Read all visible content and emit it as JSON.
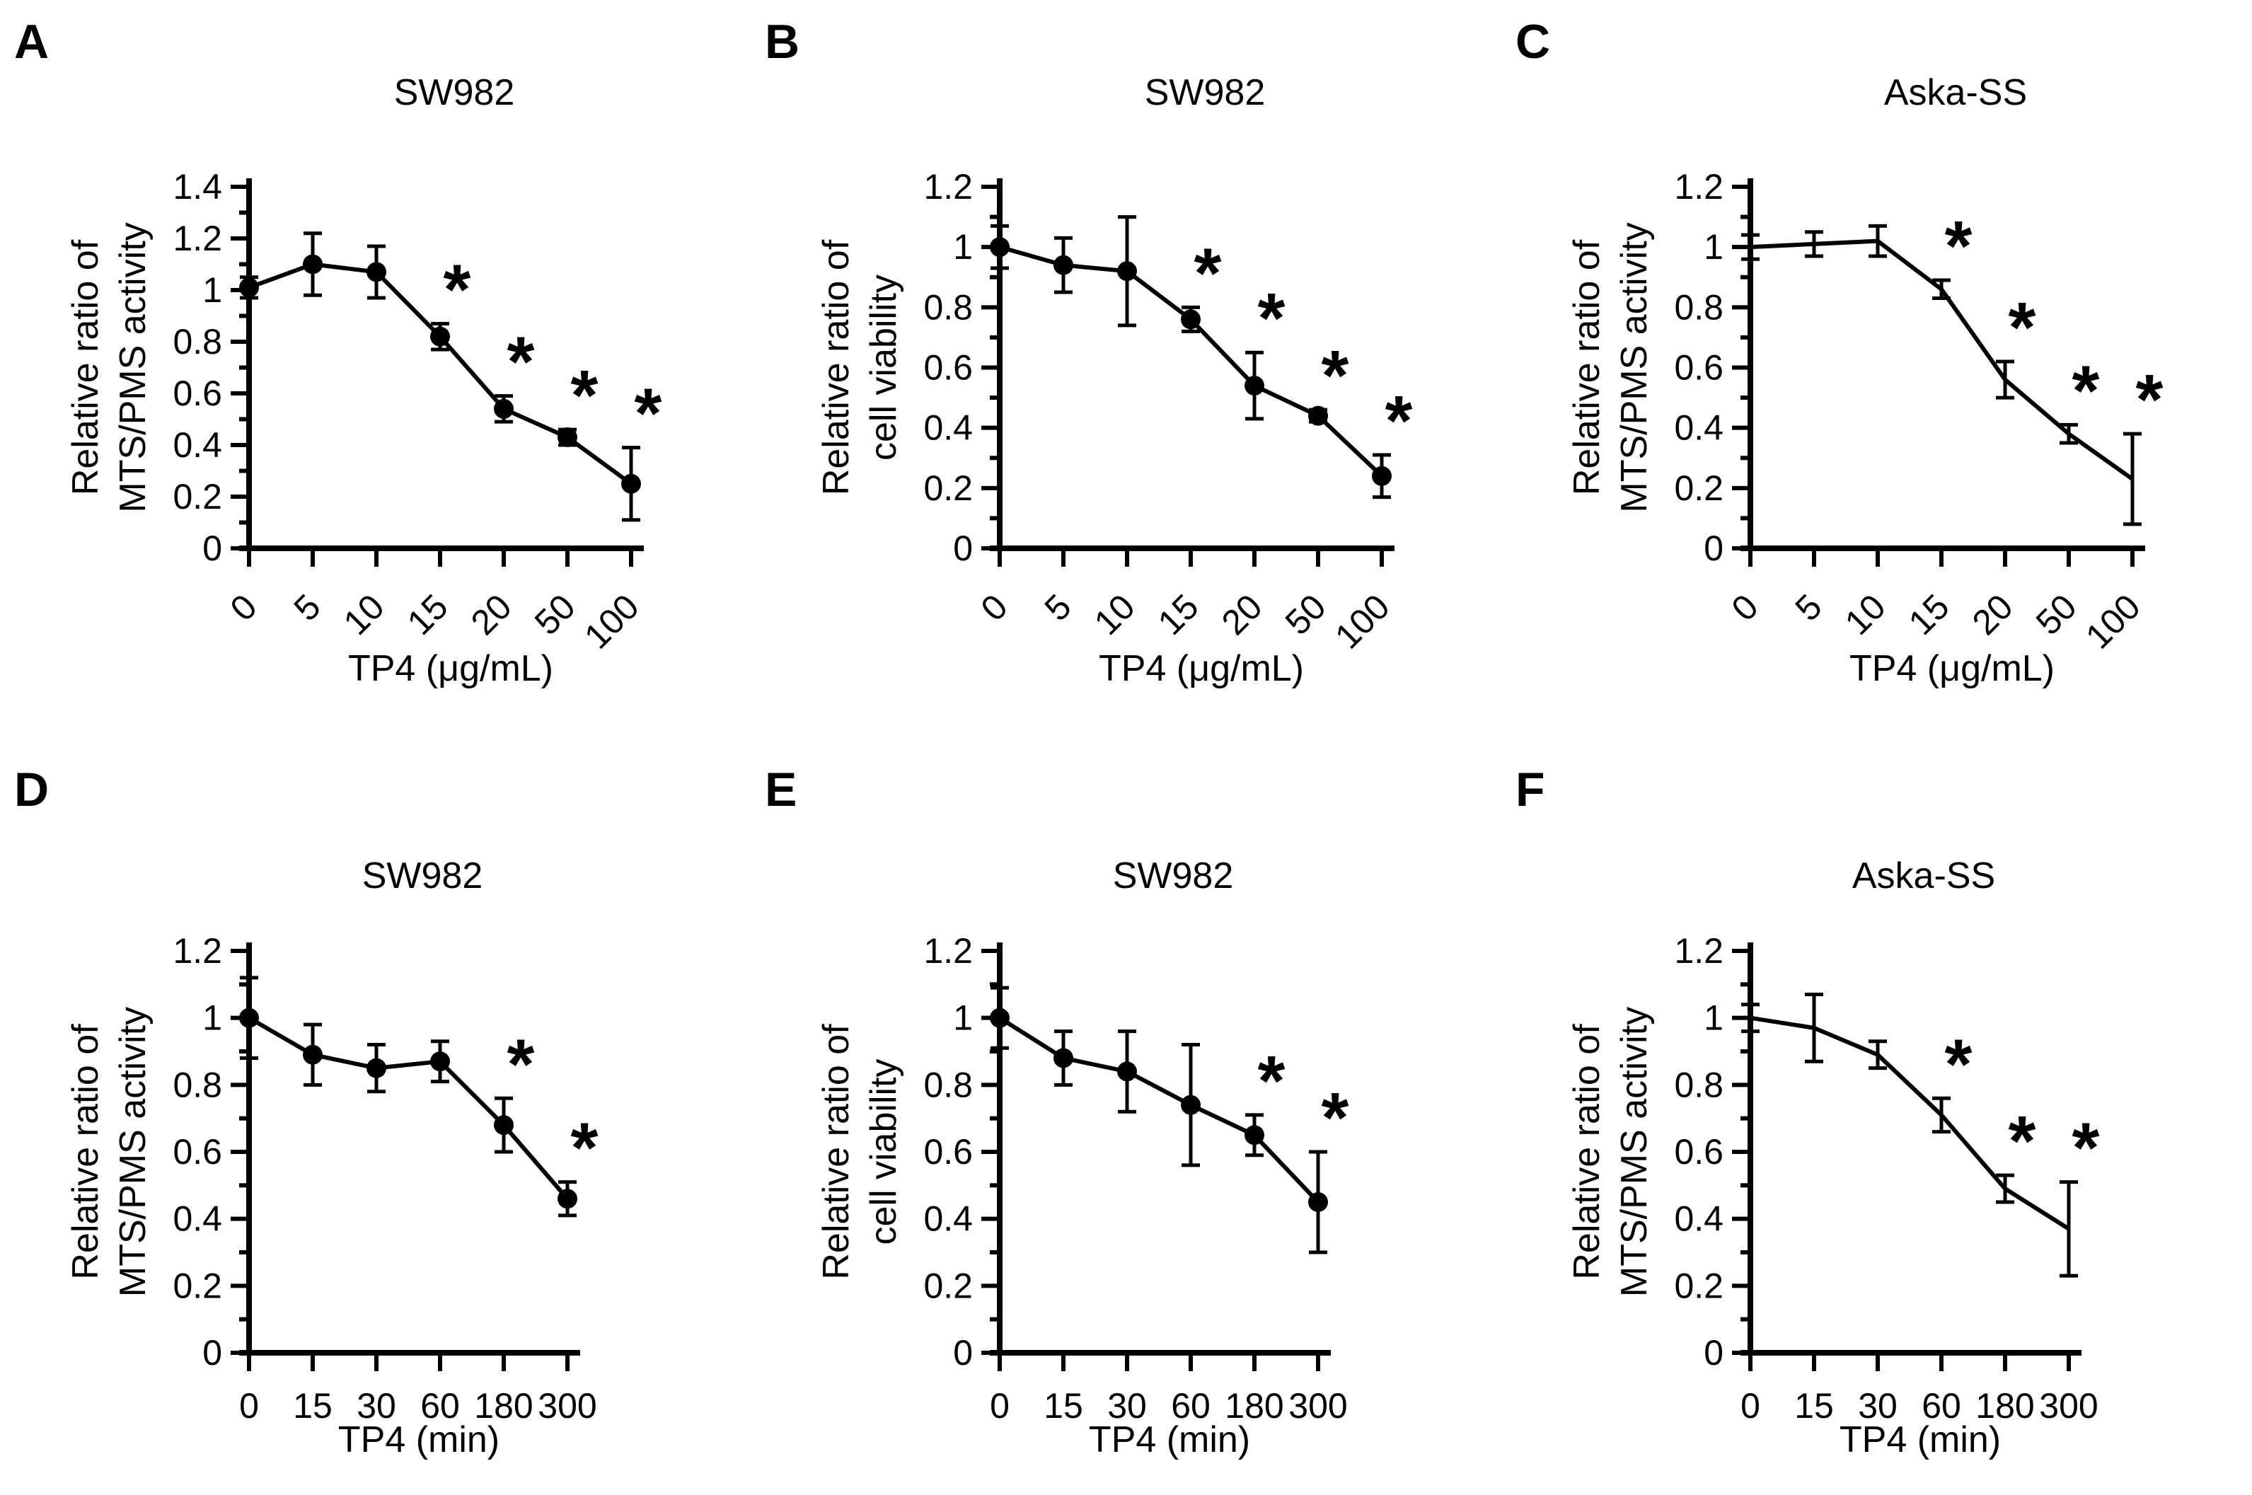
{
  "figure": {
    "background_color": "#ffffff",
    "ink_color": "#000000",
    "significance_symbol": "*",
    "panel_letters": [
      "A",
      "B",
      "C",
      "D",
      "E",
      "F"
    ]
  },
  "chart_data": [
    {
      "panel_letter": "A",
      "type": "line",
      "title": "SW982",
      "xlabel": "TP4 (μg/mL)",
      "ylabel_lines": [
        "Relative ratio of",
        "MTS/PMS activity"
      ],
      "categories": [
        "0",
        "5",
        "10",
        "15",
        "20",
        "50",
        "100"
      ],
      "values": [
        1.01,
        1.1,
        1.07,
        0.82,
        0.54,
        0.43,
        0.25
      ],
      "errors": [
        0.04,
        0.12,
        0.1,
        0.05,
        0.05,
        0.03,
        0.14
      ],
      "significant": [
        false,
        false,
        false,
        true,
        true,
        true,
        true
      ],
      "has_point_markers": true,
      "x_labels_rotated": true,
      "ylim": [
        0,
        1.4
      ],
      "yticks": [
        "0",
        "0.2",
        "0.4",
        "0.6",
        "0.8",
        "1",
        "1.2",
        "1.4"
      ],
      "grid": false,
      "legend": "none",
      "line_color": "#000000"
    },
    {
      "panel_letter": "B",
      "type": "line",
      "title": "SW982",
      "xlabel": "TP4 (μg/mL)",
      "ylabel_lines": [
        "Relative ratio of",
        "cell viability"
      ],
      "categories": [
        "0",
        "5",
        "10",
        "15",
        "20",
        "50",
        "100"
      ],
      "values": [
        1.0,
        0.94,
        0.92,
        0.76,
        0.54,
        0.44,
        0.24
      ],
      "errors": [
        0.07,
        0.09,
        0.18,
        0.04,
        0.11,
        0.02,
        0.07
      ],
      "significant": [
        false,
        false,
        false,
        true,
        true,
        true,
        true
      ],
      "has_point_markers": true,
      "x_labels_rotated": true,
      "ylim": [
        0,
        1.2
      ],
      "yticks": [
        "0",
        "0.2",
        "0.4",
        "0.6",
        "0.8",
        "1",
        "1.2"
      ],
      "grid": false,
      "legend": "none",
      "line_color": "#000000"
    },
    {
      "panel_letter": "C",
      "type": "line",
      "title": "Aska-SS",
      "xlabel": "TP4 (μg/mL)",
      "ylabel_lines": [
        "Relative ratio of",
        "MTS/PMS activity"
      ],
      "categories": [
        "0",
        "5",
        "10",
        "15",
        "20",
        "50",
        "100"
      ],
      "values": [
        1.0,
        1.01,
        1.02,
        0.86,
        0.56,
        0.38,
        0.23
      ],
      "errors": [
        0.04,
        0.04,
        0.05,
        0.03,
        0.06,
        0.03,
        0.15
      ],
      "significant": [
        false,
        false,
        false,
        true,
        true,
        true,
        true
      ],
      "has_point_markers": false,
      "x_labels_rotated": true,
      "ylim": [
        0,
        1.2
      ],
      "yticks": [
        "0",
        "0.2",
        "0.4",
        "0.6",
        "0.8",
        "1",
        "1.2"
      ],
      "grid": false,
      "legend": "none",
      "line_color": "#000000"
    },
    {
      "panel_letter": "D",
      "type": "line",
      "title": "SW982",
      "xlabel": "TP4 (min)",
      "ylabel_lines": [
        "Relative ratio of",
        "MTS/PMS activity"
      ],
      "categories": [
        "0",
        "15",
        "30",
        "60",
        "180",
        "300"
      ],
      "values": [
        1.0,
        0.89,
        0.85,
        0.87,
        0.68,
        0.46
      ],
      "errors": [
        0.12,
        0.09,
        0.07,
        0.06,
        0.08,
        0.05
      ],
      "significant": [
        false,
        false,
        false,
        false,
        true,
        true
      ],
      "has_point_markers": true,
      "x_labels_rotated": false,
      "ylim": [
        0,
        1.2
      ],
      "yticks": [
        "0",
        "0.2",
        "0.4",
        "0.6",
        "0.8",
        "1",
        "1.2"
      ],
      "grid": false,
      "legend": "none",
      "line_color": "#000000"
    },
    {
      "panel_letter": "E",
      "type": "line",
      "title": "SW982",
      "xlabel": "TP4 (min)",
      "ylabel_lines": [
        "Relative ratio of",
        "cell viability"
      ],
      "categories": [
        "0",
        "15",
        "30",
        "60",
        "180",
        "300"
      ],
      "values": [
        1.0,
        0.88,
        0.84,
        0.74,
        0.65,
        0.45
      ],
      "errors": [
        0.09,
        0.08,
        0.12,
        0.18,
        0.06,
        0.15
      ],
      "significant": [
        false,
        false,
        false,
        false,
        true,
        true
      ],
      "has_point_markers": true,
      "x_labels_rotated": false,
      "ylim": [
        0,
        1.2
      ],
      "yticks": [
        "0",
        "0.2",
        "0.4",
        "0.6",
        "0.8",
        "1",
        "1.2"
      ],
      "grid": false,
      "legend": "none",
      "line_color": "#000000"
    },
    {
      "panel_letter": "F",
      "type": "line",
      "title": "Aska-SS",
      "xlabel": "TP4 (min)",
      "ylabel_lines": [
        "Relative ratio of",
        "MTS/PMS activity"
      ],
      "categories": [
        "0",
        "15",
        "30",
        "60",
        "180",
        "300"
      ],
      "values": [
        1.0,
        0.97,
        0.89,
        0.71,
        0.49,
        0.37
      ],
      "errors": [
        0.04,
        0.1,
        0.04,
        0.05,
        0.04,
        0.14
      ],
      "significant": [
        false,
        false,
        false,
        true,
        true,
        true
      ],
      "has_point_markers": false,
      "x_labels_rotated": false,
      "ylim": [
        0,
        1.2
      ],
      "yticks": [
        "0",
        "0.2",
        "0.4",
        "0.6",
        "0.8",
        "1",
        "1.2"
      ],
      "grid": false,
      "legend": "none",
      "line_color": "#000000"
    }
  ]
}
